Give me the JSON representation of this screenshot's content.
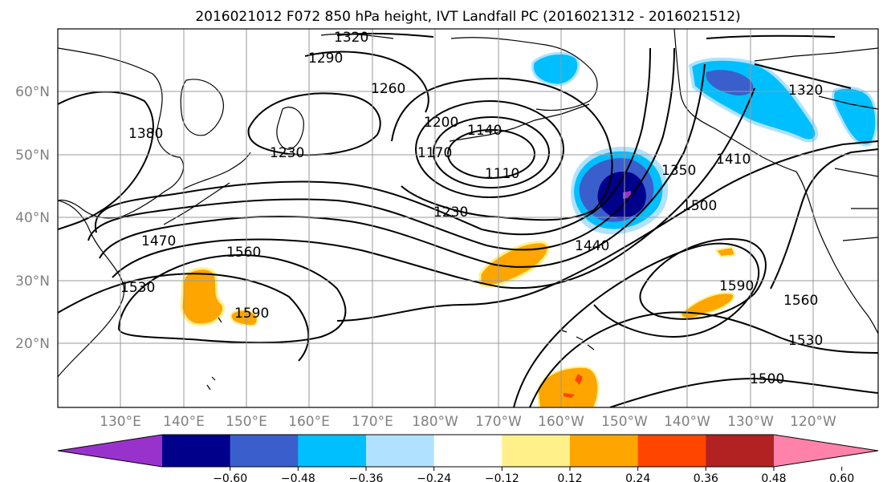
{
  "title": "2016021012 F072 850 hPa height, IVT Landfall PC (2016021312 - 2016021512)",
  "map": {
    "lon_labels": [
      "130°E",
      "140°E",
      "150°E",
      "160°E",
      "170°E",
      "180°W",
      "170°W",
      "160°W",
      "150°W",
      "140°W",
      "130°W",
      "120°W"
    ],
    "lat_labels": [
      "60°N",
      "50°N",
      "40°N",
      "30°N",
      "20°N"
    ],
    "grid": true,
    "contour_labels": [
      "1320",
      "1290",
      "1260",
      "1380",
      "1230",
      "1200",
      "1140",
      "1170",
      "1110",
      "1230",
      "1350",
      "1410",
      "1320",
      "1500",
      "1440",
      "1470",
      "1560",
      "1530",
      "1590",
      "1590",
      "1560",
      "1530",
      "1500"
    ]
  },
  "colorbar": {
    "ticks": [
      "−0.60",
      "−0.48",
      "−0.36",
      "−0.24",
      "−0.12",
      "0.12",
      "0.24",
      "0.36",
      "0.48",
      "0.60"
    ],
    "colors": [
      "#9932cc",
      "#00008b",
      "#3a5fcd",
      "#00bfff",
      "#b0e2ff",
      "#ffffff",
      "#fff08a",
      "#ffa500",
      "#ff4500",
      "#b22222",
      "#ff82ab"
    ],
    "extend": "both"
  }
}
